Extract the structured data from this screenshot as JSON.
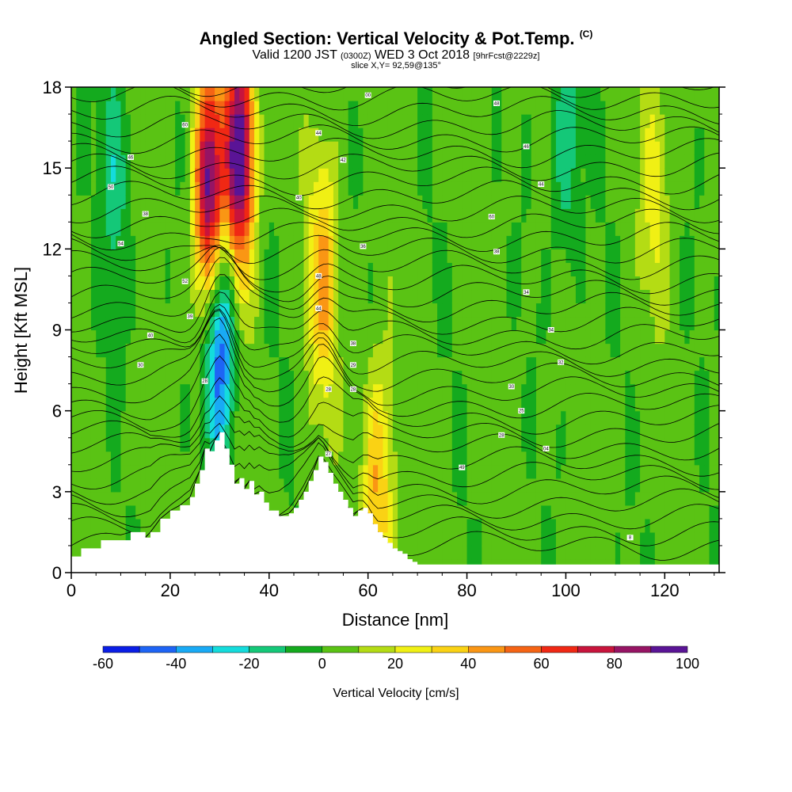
{
  "title": {
    "main": "Angled Section: Vertical Velocity & Pot.Temp.",
    "main_unit": "(C)",
    "line2_a": "Valid 1200 JST",
    "line2_b": "(0300Z)",
    "line2_c": "WED 3 Oct 2018",
    "line2_d": "[9hrFcst@2229z]",
    "line3": "slice X,Y= 92,59@135°"
  },
  "chart_data": {
    "type": "heatmap",
    "xlabel": "Distance [nm]",
    "ylabel": "Height [Kft MSL]",
    "xlim": [
      0,
      131
    ],
    "ylim": [
      0,
      18
    ],
    "x_ticks": [
      0,
      20,
      40,
      60,
      80,
      100,
      120
    ],
    "y_ticks": [
      0,
      3,
      6,
      9,
      12,
      15,
      18
    ],
    "colorbar": {
      "label": "Vertical Velocity [cm/s]",
      "min": -60,
      "max": 100,
      "step": 10,
      "tick_values": [
        -60,
        -40,
        -20,
        0,
        20,
        40,
        60,
        80,
        100
      ],
      "colors": [
        "#0a1ee6",
        "#1e64f5",
        "#19aaf5",
        "#14dcdc",
        "#14c878",
        "#14aa1e",
        "#5ac314",
        "#b4dc14",
        "#f0f014",
        "#fad214",
        "#fa9614",
        "#f56414",
        "#f02814",
        "#c8143c",
        "#961464",
        "#5a1496"
      ]
    },
    "terrain_profile": {
      "x_nm": [
        0,
        2,
        6,
        12,
        15,
        16,
        18,
        20,
        22,
        24,
        25,
        26,
        27,
        28,
        29,
        30,
        31,
        32,
        33,
        34,
        35,
        36,
        37,
        38,
        39,
        40,
        42,
        44,
        45,
        46,
        47,
        48,
        49,
        50,
        51,
        52,
        53,
        54,
        55,
        56,
        57,
        58,
        59,
        60,
        61,
        62,
        63,
        64,
        65,
        66,
        67,
        68,
        69,
        70,
        71,
        72,
        131
      ],
      "height_kft": [
        0.6,
        0.9,
        1.2,
        1.5,
        1.3,
        1.5,
        2.0,
        2.3,
        2.5,
        2.8,
        3.3,
        3.8,
        4.6,
        4.5,
        4.9,
        5.2,
        4.6,
        4.0,
        3.3,
        3.5,
        3.1,
        3.4,
        2.9,
        3.0,
        2.6,
        2.3,
        2.1,
        2.2,
        2.4,
        2.7,
        3.0,
        3.4,
        3.8,
        4.3,
        4.1,
        3.7,
        3.3,
        3.0,
        2.7,
        2.4,
        2.1,
        2.3,
        2.4,
        2.2,
        1.8,
        1.5,
        1.3,
        1.1,
        0.9,
        0.8,
        0.7,
        0.5,
        0.4,
        0.3,
        0.3,
        0.3,
        0.3
      ]
    },
    "velocity_features_cm_s": [
      {
        "x_nm": 28,
        "height_kft": 14,
        "value": 95
      },
      {
        "x_nm": 34,
        "height_kft": 15.5,
        "value": 100
      },
      {
        "x_nm": 51,
        "height_kft": 11,
        "value": 40
      },
      {
        "x_nm": 30,
        "height_kft": 9,
        "value": -60
      },
      {
        "x_nm": 9,
        "height_kft": 15,
        "value": -20
      },
      {
        "x_nm": 62,
        "height_kft": 3,
        "value": 40
      },
      {
        "x_nm": 100,
        "height_kft": 16,
        "value": -20
      },
      {
        "x_nm": 118,
        "height_kft": 14,
        "value": 20
      }
    ],
    "isentrope_labels": [
      {
        "x_nm": 23,
        "height_kft": 16.6,
        "text": "60"
      },
      {
        "x_nm": 12,
        "height_kft": 15.4,
        "text": "46"
      },
      {
        "x_nm": 8,
        "height_kft": 14.3,
        "text": "50"
      },
      {
        "x_nm": 15,
        "height_kft": 13.3,
        "text": "38"
      },
      {
        "x_nm": 10,
        "height_kft": 12.2,
        "text": "54"
      },
      {
        "x_nm": 23,
        "height_kft": 10.8,
        "text": "52"
      },
      {
        "x_nm": 24,
        "height_kft": 9.5,
        "text": "39"
      },
      {
        "x_nm": 16,
        "height_kft": 8.8,
        "text": "40"
      },
      {
        "x_nm": 14,
        "height_kft": 7.7,
        "text": "30"
      },
      {
        "x_nm": 27,
        "height_kft": 7.1,
        "text": "28"
      },
      {
        "x_nm": 60,
        "height_kft": 17.7,
        "text": "00"
      },
      {
        "x_nm": 50,
        "height_kft": 16.3,
        "text": "44"
      },
      {
        "x_nm": 55,
        "height_kft": 15.3,
        "text": "42"
      },
      {
        "x_nm": 46,
        "height_kft": 13.9,
        "text": "40"
      },
      {
        "x_nm": 59,
        "height_kft": 12.1,
        "text": "36"
      },
      {
        "x_nm": 50,
        "height_kft": 11.0,
        "text": "48"
      },
      {
        "x_nm": 50,
        "height_kft": 9.8,
        "text": "44"
      },
      {
        "x_nm": 57,
        "height_kft": 8.5,
        "text": "38"
      },
      {
        "x_nm": 57,
        "height_kft": 7.7,
        "text": "29"
      },
      {
        "x_nm": 52,
        "height_kft": 6.8,
        "text": "28"
      },
      {
        "x_nm": 57,
        "height_kft": 6.8,
        "text": "28"
      },
      {
        "x_nm": 52,
        "height_kft": 4.4,
        "text": "27"
      },
      {
        "x_nm": 86,
        "height_kft": 17.4,
        "text": "48"
      },
      {
        "x_nm": 92,
        "height_kft": 15.8,
        "text": "46"
      },
      {
        "x_nm": 95,
        "height_kft": 14.4,
        "text": "44"
      },
      {
        "x_nm": 85,
        "height_kft": 13.2,
        "text": "60"
      },
      {
        "x_nm": 86,
        "height_kft": 11.9,
        "text": "38"
      },
      {
        "x_nm": 92,
        "height_kft": 10.4,
        "text": "34"
      },
      {
        "x_nm": 97,
        "height_kft": 9.0,
        "text": "34"
      },
      {
        "x_nm": 99,
        "height_kft": 7.8,
        "text": "32"
      },
      {
        "x_nm": 89,
        "height_kft": 6.9,
        "text": "30"
      },
      {
        "x_nm": 91,
        "height_kft": 6.0,
        "text": "25"
      },
      {
        "x_nm": 87,
        "height_kft": 5.1,
        "text": "28"
      },
      {
        "x_nm": 96,
        "height_kft": 4.6,
        "text": "04"
      },
      {
        "x_nm": 79,
        "height_kft": 3.9,
        "text": "49"
      },
      {
        "x_nm": 113,
        "height_kft": 1.3,
        "text": "8"
      }
    ]
  }
}
